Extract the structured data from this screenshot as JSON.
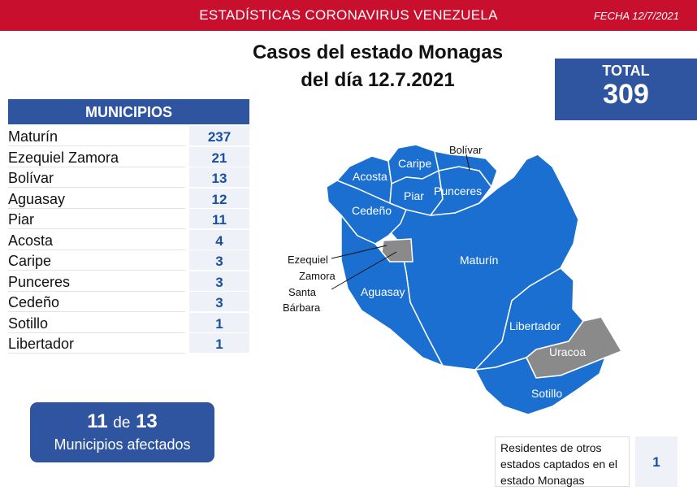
{
  "header": {
    "title": "ESTADÍSTICAS CORONAVIRUS VENEZUELA",
    "date": "FECHA 12/7/2021"
  },
  "headline": {
    "line1": "Casos del estado Monagas",
    "line2": "del día 12.7.2021"
  },
  "total": {
    "label": "TOTAL",
    "value": "309"
  },
  "municipios": {
    "header": "MUNICIPIOS",
    "rows": [
      {
        "name": "Maturín",
        "value": "237"
      },
      {
        "name": "Ezequiel Zamora",
        "value": "21"
      },
      {
        "name": "Bolívar",
        "value": "13"
      },
      {
        "name": "Aguasay",
        "value": "12"
      },
      {
        "name": "Piar",
        "value": "11"
      },
      {
        "name": "Acosta",
        "value": "4"
      },
      {
        "name": "Caripe",
        "value": "3"
      },
      {
        "name": "Punceres",
        "value": "3"
      },
      {
        "name": "Cedeño",
        "value": "3"
      },
      {
        "name": "Sotillo",
        "value": "1"
      },
      {
        "name": "Libertador",
        "value": "1"
      }
    ]
  },
  "affected": {
    "count": "11",
    "connector": "de",
    "of": "13",
    "label": "Municipios afectados"
  },
  "residents": {
    "label_line1": "Residentes de otros",
    "label_line2": "estados captados en el",
    "label_line3": "estado Monagas",
    "value": "1"
  },
  "map": {
    "labels": {
      "bolivar": "Bolívar",
      "acosta": "Acosta",
      "caripe": "Caripe",
      "piar": "Piar",
      "punceres": "Punceres",
      "cedeno": "Cedeño",
      "maturin": "Maturín",
      "ezequiel_line1": "Ezequiel",
      "ezequiel_line2": "Zamora",
      "santa_line1": "Santa",
      "santa_line2": "Bárbara",
      "aguasay": "Aguasay",
      "libertador": "Libertador",
      "uracoa": "Uracoa",
      "sotillo": "Sotillo"
    },
    "colors": {
      "affected": "#1a6fd1",
      "unaffected": "#8a8a8a",
      "border": "#ffffff"
    }
  }
}
